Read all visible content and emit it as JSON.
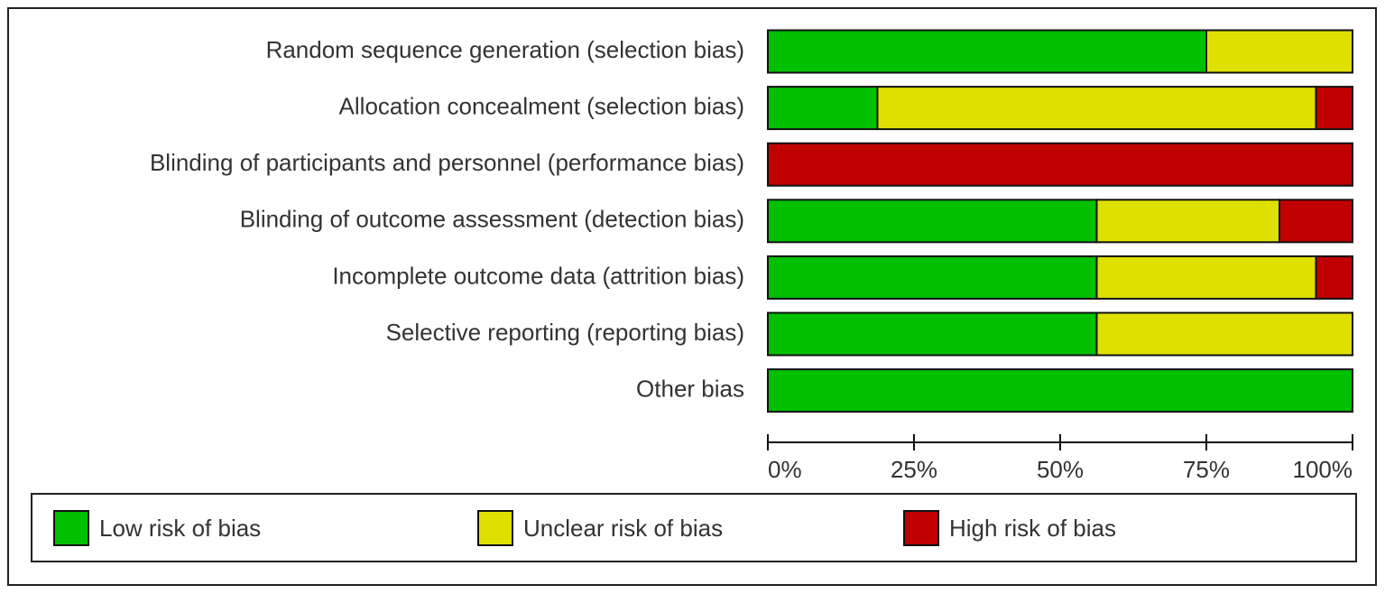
{
  "chart_data": {
    "type": "stacked_barh",
    "categories": [
      "Random sequence generation (selection bias)",
      "Allocation concealment (selection bias)",
      "Blinding of participants and personnel (performance bias)",
      "Blinding of outcome assessment (detection bias)",
      "Incomplete outcome data (attrition bias)",
      "Selective reporting (reporting bias)",
      "Other bias"
    ],
    "series": [
      {
        "name": "Low risk of bias",
        "color": "#00c000",
        "values": [
          75,
          18.75,
          0,
          56.25,
          56.25,
          56.25,
          100
        ]
      },
      {
        "name": "Unclear risk of bias",
        "color": "#e0e000",
        "values": [
          25,
          75,
          0,
          31.25,
          37.5,
          43.75,
          0
        ]
      },
      {
        "name": "High risk of bias",
        "color": "#c00000",
        "values": [
          0,
          6.25,
          100,
          12.5,
          6.25,
          0,
          0
        ]
      }
    ],
    "xlim": [
      0,
      100
    ],
    "xticks": [
      {
        "value": 0,
        "label": "0%"
      },
      {
        "value": 25,
        "label": "25%"
      },
      {
        "value": 50,
        "label": "50%"
      },
      {
        "value": 75,
        "label": "75%"
      },
      {
        "value": 100,
        "label": "100%"
      }
    ],
    "legend": "bottom"
  }
}
